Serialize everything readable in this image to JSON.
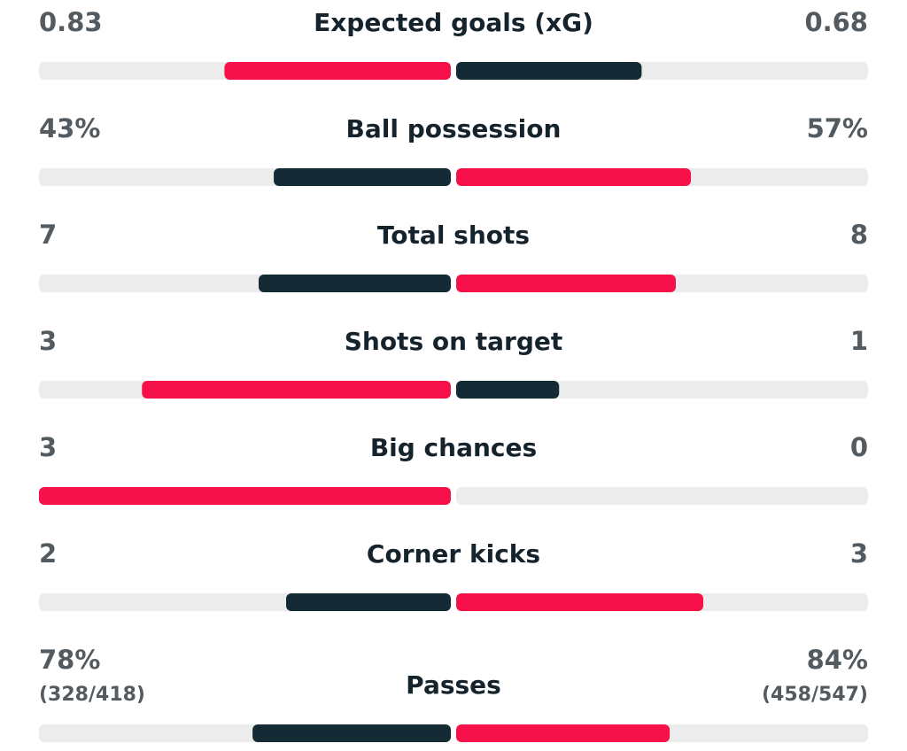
{
  "stats": [
    {
      "label": "Expected goals (xG)",
      "home": {
        "value": 0.83
      },
      "away": {
        "value": 0.68
      }
    },
    {
      "label": "Ball possession",
      "home": {
        "value": 43,
        "label": "43%"
      },
      "away": {
        "value": 57,
        "label": "57%"
      }
    },
    {
      "label": "Total shots",
      "home": {
        "value": 7
      },
      "away": {
        "value": 8
      }
    },
    {
      "label": "Shots on target",
      "home": {
        "value": 3
      },
      "away": {
        "value": 1
      }
    },
    {
      "label": "Big chances",
      "home": {
        "value": 3
      },
      "away": {
        "value": 0
      }
    },
    {
      "label": "Corner kicks",
      "home": {
        "value": 2
      },
      "away": {
        "value": 3
      }
    },
    {
      "label": "Passes",
      "home": {
        "value": 78,
        "label": "78%",
        "detail": "(328/418)"
      },
      "away": {
        "value": 84,
        "label": "84%",
        "detail": "(458/547)"
      }
    }
  ],
  "colors": {
    "leading": "#f7114a",
    "trailing": "#142b36",
    "track": "#ececec"
  }
}
